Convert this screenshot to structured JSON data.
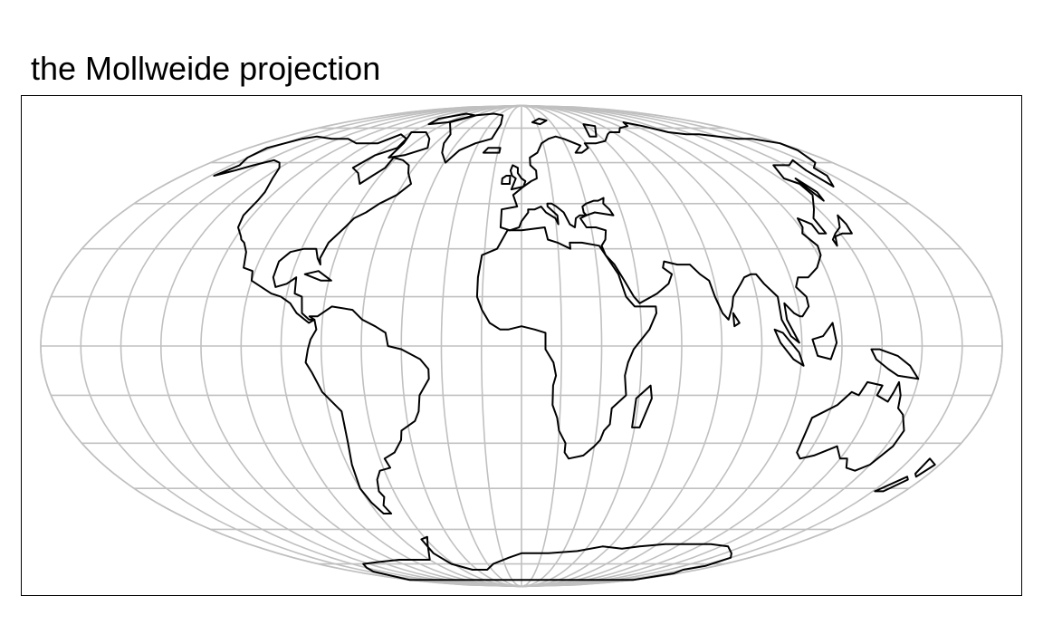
{
  "title": "the Mollweide projection",
  "map": {
    "projection": "Mollweide",
    "graticule_interval_deg": 15,
    "graticule_color": "#c0c0c0",
    "coastline_color": "#000000",
    "land_fill": "none",
    "background": "#ffffff"
  }
}
